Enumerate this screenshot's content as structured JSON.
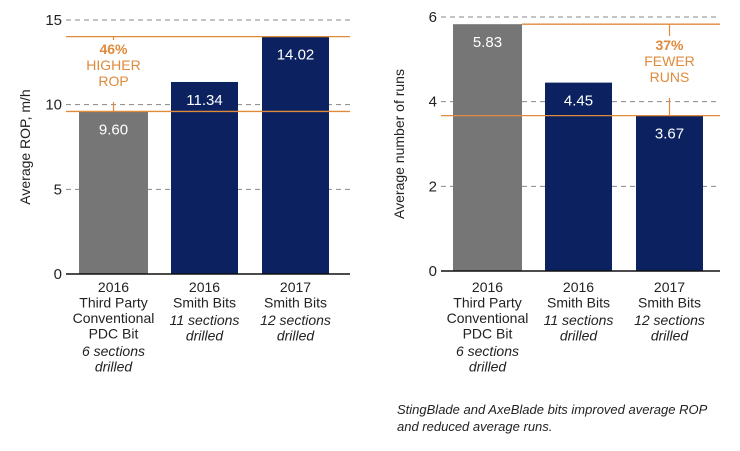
{
  "colors": {
    "gray_bar": "#767676",
    "navy_bar": "#0b2160",
    "annotation": "#e08a3c",
    "grid": "#888888",
    "axis": "#111111"
  },
  "chart_data": [
    {
      "type": "bar",
      "title": "",
      "ylabel": "Average ROP, m/h",
      "xlabel": "",
      "ylim": [
        0,
        15
      ],
      "yticks": [
        0,
        5,
        10,
        15
      ],
      "grid": "dashed horizontal",
      "categories": [
        {
          "lines": [
            "2016",
            "Third Party",
            "Conventional",
            "PDC Bit"
          ],
          "note": [
            "6 sections",
            "drilled"
          ]
        },
        {
          "lines": [
            "2016",
            "Smith Bits"
          ],
          "note": [
            "11 sections",
            "drilled"
          ]
        },
        {
          "lines": [
            "2017",
            "Smith Bits"
          ],
          "note": [
            "12 sections",
            "drilled"
          ]
        }
      ],
      "values": [
        9.6,
        11.34,
        14.02
      ],
      "labels": [
        "9.60",
        "11.34",
        "14.02"
      ],
      "bar_colors": [
        "gray",
        "navy",
        "navy"
      ],
      "annotation": {
        "lines": [
          "46%",
          "HIGHER",
          "ROP"
        ],
        "from_value": 9.6,
        "to_value": 14.02,
        "position": "above first bar"
      }
    },
    {
      "type": "bar",
      "title": "",
      "ylabel": "Average number of runs",
      "xlabel": "",
      "ylim": [
        0,
        6
      ],
      "yticks": [
        0,
        2,
        4,
        6
      ],
      "grid": "dashed horizontal",
      "categories": [
        {
          "lines": [
            "2016",
            "Third Party",
            "Conventional",
            "PDC Bit"
          ],
          "note": [
            "6 sections",
            "drilled"
          ]
        },
        {
          "lines": [
            "2016",
            "Smith Bits"
          ],
          "note": [
            "11 sections",
            "drilled"
          ]
        },
        {
          "lines": [
            "2017",
            "Smith Bits"
          ],
          "note": [
            "12 sections",
            "drilled"
          ]
        }
      ],
      "values": [
        5.83,
        4.45,
        3.67
      ],
      "labels": [
        "5.83",
        "4.45",
        "3.67"
      ],
      "bar_colors": [
        "gray",
        "navy",
        "navy"
      ],
      "annotation": {
        "lines": [
          "37%",
          "FEWER",
          "RUNS"
        ],
        "from_value": 5.83,
        "to_value": 3.67,
        "position": "above third bar"
      }
    }
  ],
  "caption": "StingBlade and AxeBlade bits improved average ROP and reduced average runs."
}
